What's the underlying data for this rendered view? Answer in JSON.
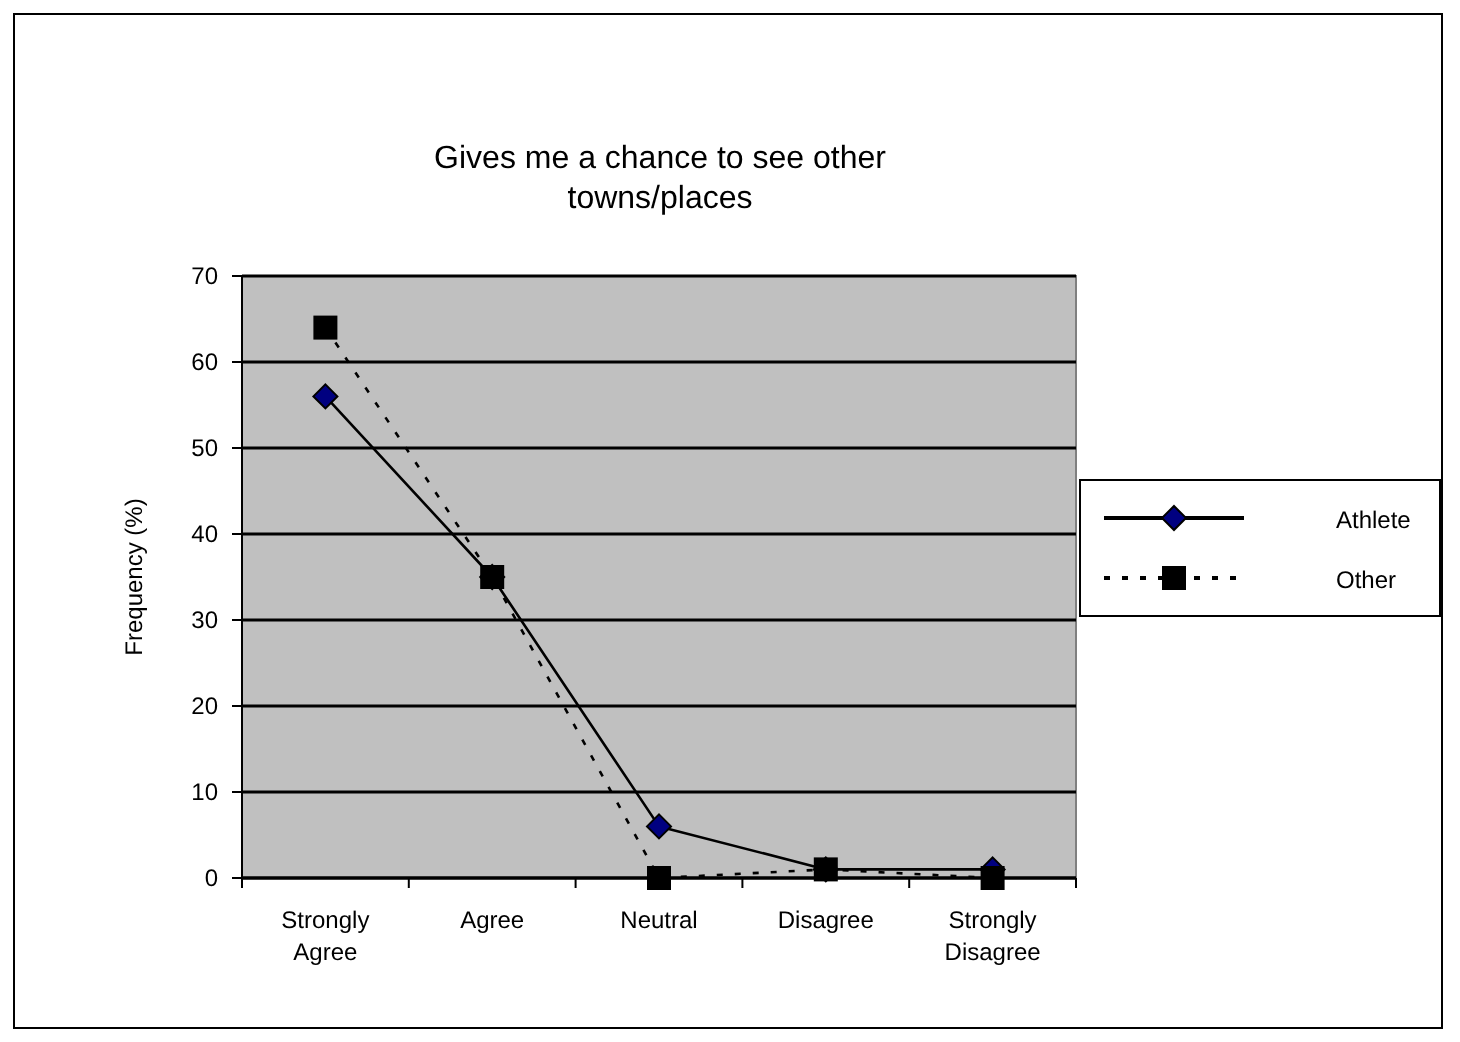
{
  "chart_data": {
    "type": "line",
    "title": "Gives me a chance to see other towns/places",
    "ylabel": "Frequency (%)",
    "categories": [
      "Strongly Agree",
      "Agree",
      "Neutral",
      "Disagree",
      "Strongly Disagree"
    ],
    "series": [
      {
        "name": "Athlete",
        "color": "#000080",
        "marker": "diamond",
        "line_style": "solid",
        "values": [
          56,
          35,
          6,
          1,
          1
        ]
      },
      {
        "name": "Other",
        "color": "#000000",
        "marker": "square",
        "line_style": "dotted",
        "values": [
          64,
          35,
          0,
          1,
          0
        ]
      }
    ],
    "ylim": [
      0,
      70
    ],
    "yticks": [
      0,
      10,
      20,
      30,
      40,
      50,
      60,
      70
    ],
    "grid": "y",
    "legend": "right"
  }
}
